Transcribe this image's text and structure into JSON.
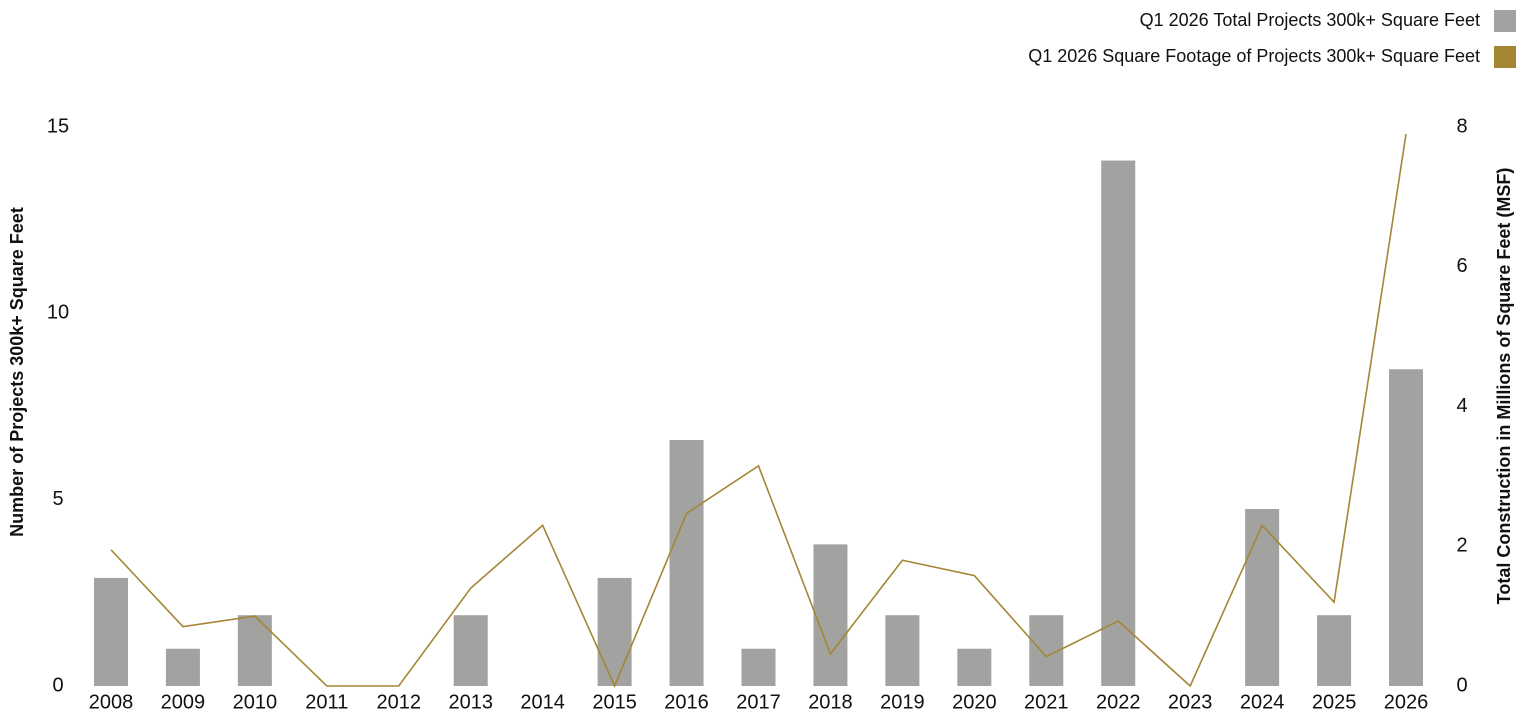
{
  "chart_data": {
    "type": "bar",
    "categories": [
      "2008",
      "2009",
      "2010",
      "2011",
      "2012",
      "2013",
      "2014",
      "2015",
      "2016",
      "2017",
      "2018",
      "2019",
      "2020",
      "2021",
      "2022",
      "2023",
      "2024",
      "2025",
      "2026"
    ],
    "series": [
      {
        "name": "Q1 2026 Total Projects 300k+ Square Feet",
        "color": "#a2a2a1",
        "type": "bar",
        "values": [
          2.9,
          1,
          1.9,
          0,
          0,
          1.9,
          0,
          2.9,
          6.6,
          1,
          3.8,
          1.9,
          1,
          1.9,
          14.1,
          0,
          4.75,
          1.9,
          8.5
        ]
      },
      {
        "name": "Q1 2026 Square Footage of Projects 300k+ Square Feet",
        "color": "#a58634",
        "type": "line",
        "axis": "y2",
        "values": [
          1.95,
          0.85,
          1.0,
          0,
          0,
          1.4,
          2.3,
          0,
          2.47,
          3.15,
          0.46,
          1.8,
          1.58,
          0.42,
          0.93,
          0,
          2.3,
          1.2,
          7.9
        ]
      }
    ],
    "ylabel": "Number of Projects 300k+ Square Feet",
    "y2label": "Total Construction in Millions of Square Feet (MSF)",
    "ylim": [
      0,
      15
    ],
    "yticks": [
      0,
      5,
      10,
      15
    ],
    "y2lim": [
      0,
      8
    ],
    "y2ticks": [
      0,
      2,
      4,
      6,
      8
    ],
    "grid": false,
    "legend": "top-right"
  }
}
